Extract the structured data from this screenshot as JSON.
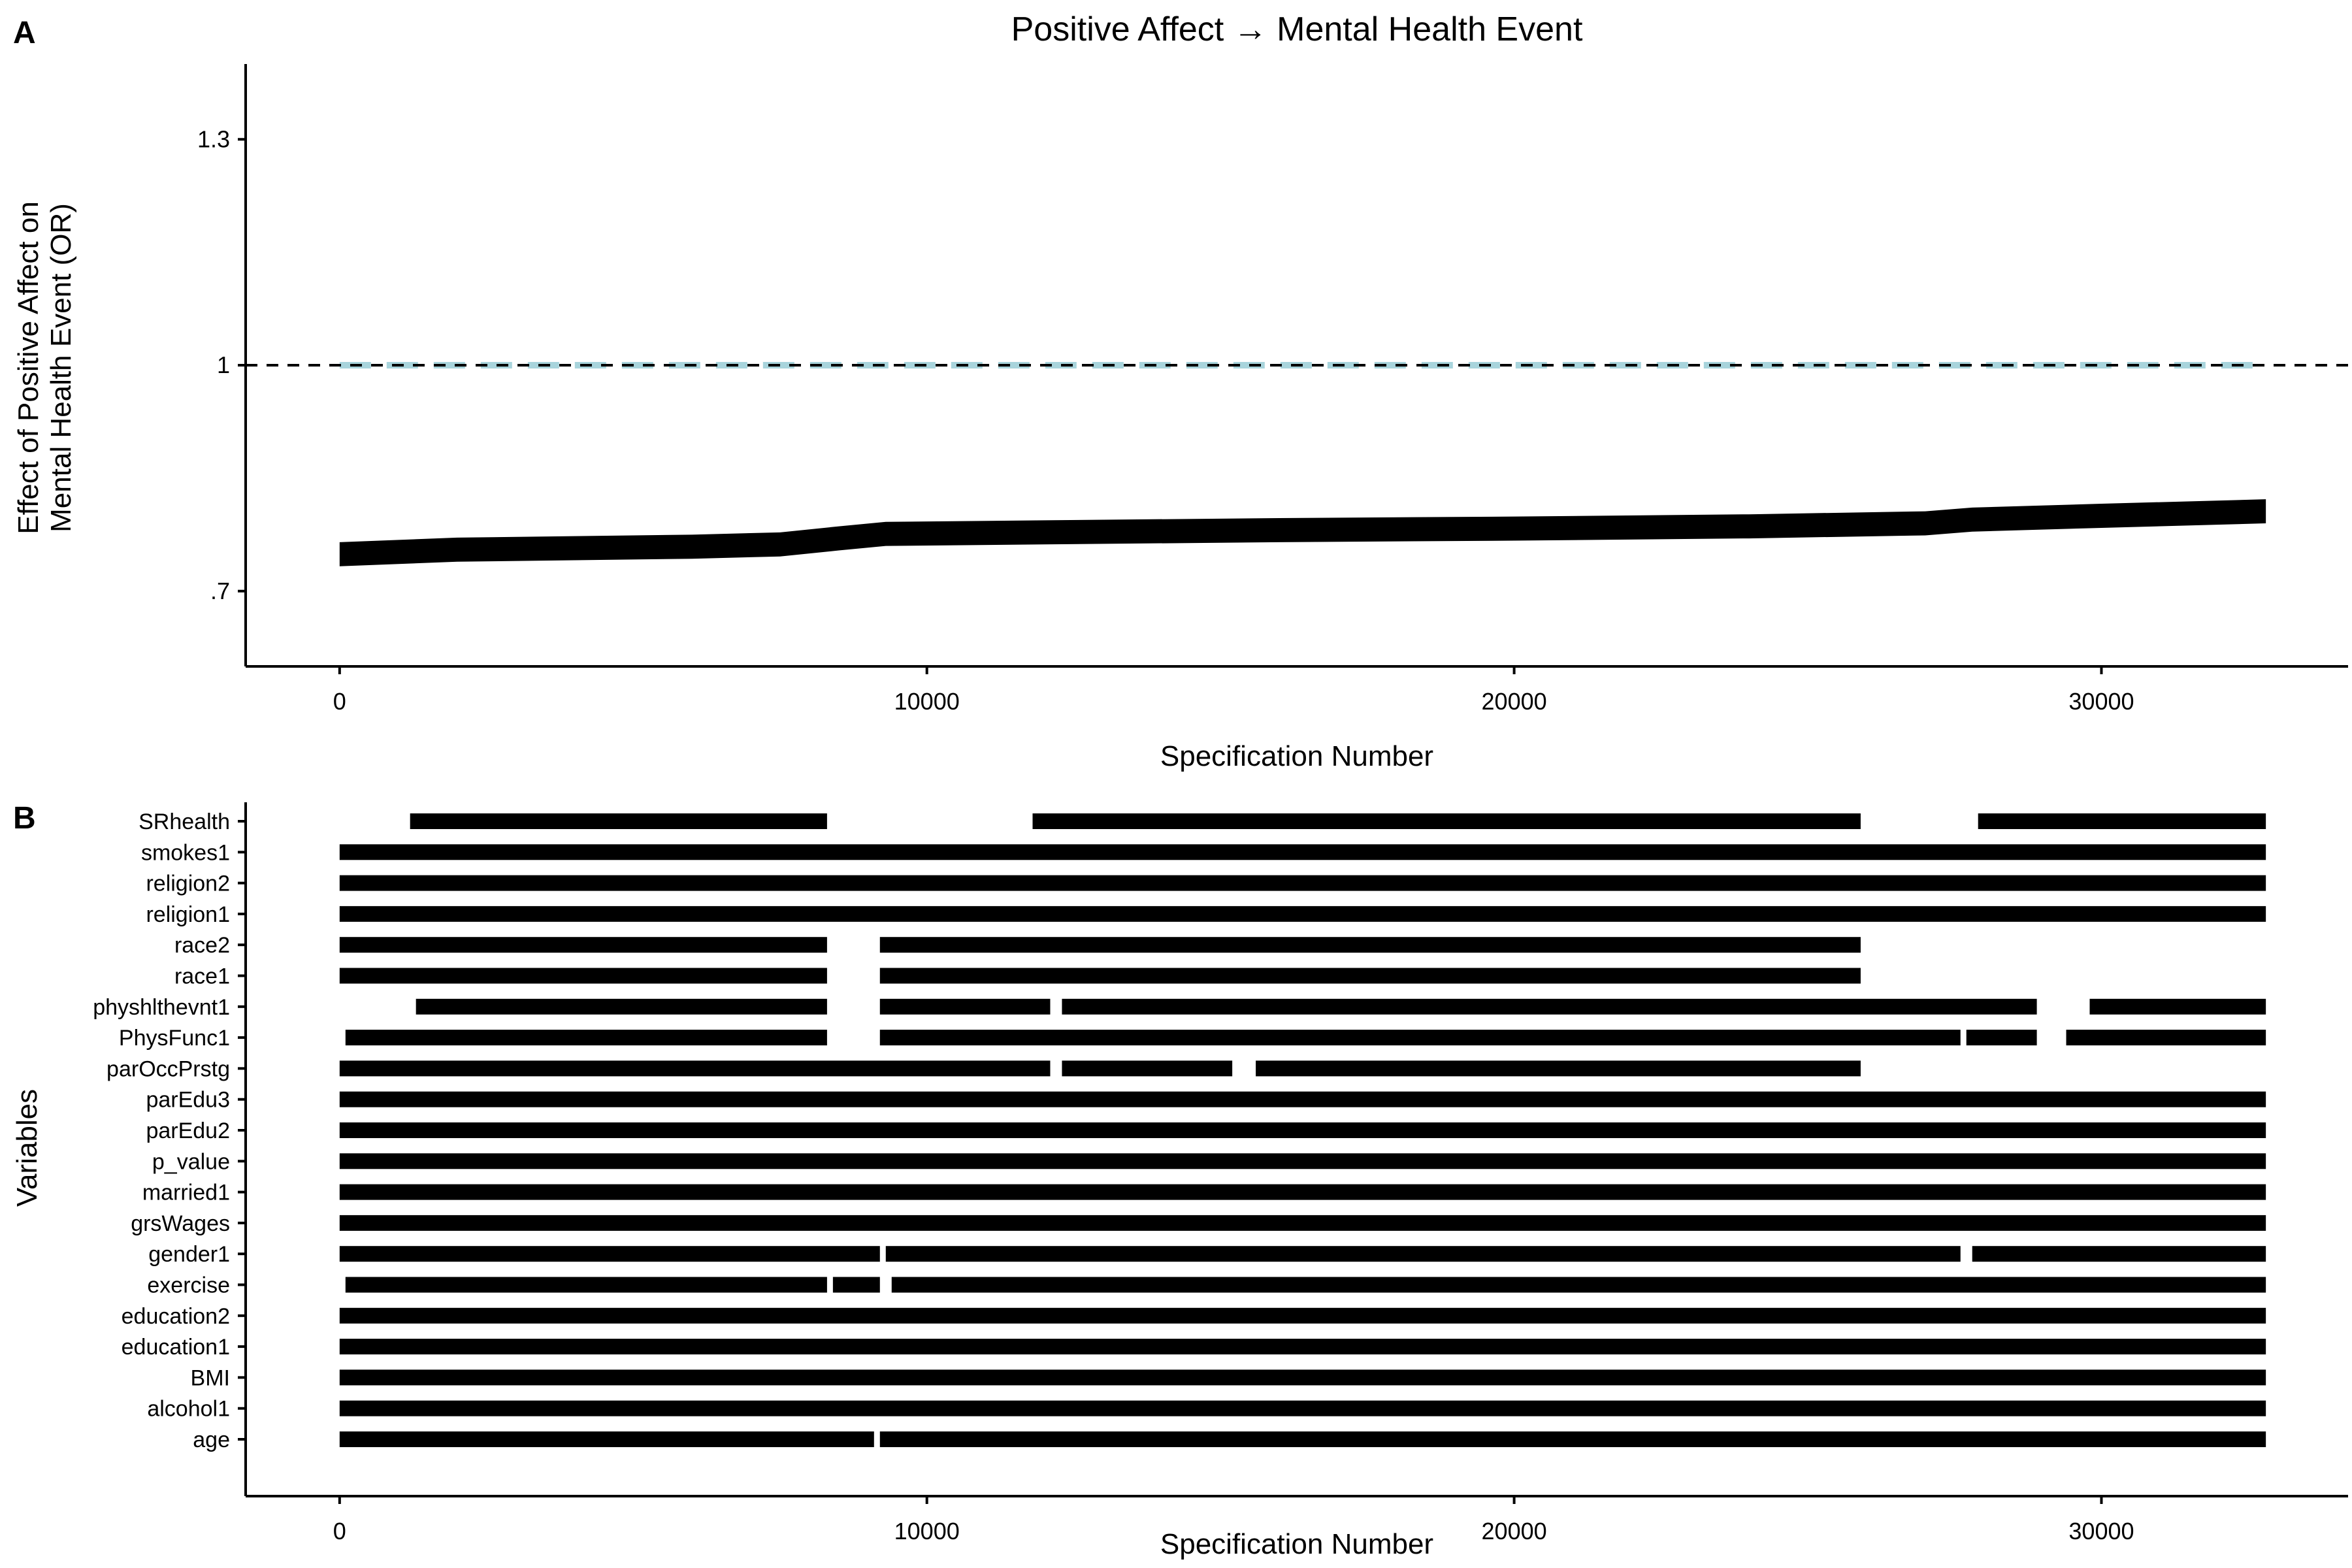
{
  "panels": {
    "a_letter": "A",
    "b_letter": "B"
  },
  "colors": {
    "ink": "#000000",
    "ci_band": "#a8d4dc",
    "background": "#ffffff"
  },
  "chart_data": [
    {
      "type": "line",
      "panel": "A",
      "title": "Positive Affect → Mental Health Event",
      "xlabel": "Specification Number",
      "ylabel_line1": "Effect of Positive Affect on",
      "ylabel_line2": "Mental Health Event (OR)",
      "xlim": [
        -1600,
        34200
      ],
      "ylim": [
        0.6,
        1.4
      ],
      "x_ticks": [
        0,
        10000,
        20000,
        30000
      ],
      "x_tick_labels": [
        "0",
        "10000",
        "20000",
        "30000"
      ],
      "y_ticks": [
        0.7,
        1.0,
        1.3
      ],
      "y_tick_labels": [
        ".7",
        "1",
        "1.3"
      ],
      "reference_line": 1.0,
      "reference_style": "dashed",
      "grid": false,
      "series": [
        {
          "role": "estimate",
          "x": [
            0,
            2000,
            4000,
            6000,
            7500,
            8500,
            9300,
            12000,
            16000,
            20000,
            24000,
            27000,
            27800,
            30000,
            32800
          ],
          "y": [
            0.749,
            0.755,
            0.757,
            0.759,
            0.762,
            0.77,
            0.776,
            0.778,
            0.781,
            0.783,
            0.786,
            0.79,
            0.795,
            0.8,
            0.806
          ],
          "band": 0.016
        },
        {
          "role": "null-distribution",
          "x": [
            0,
            32800
          ],
          "y": [
            1.0,
            1.0
          ],
          "style": "dashed-light-band"
        }
      ]
    },
    {
      "type": "heatmap",
      "panel": "B",
      "xlabel": "Specification Number",
      "ylabel": "Variables",
      "xlim": [
        -1600,
        34200
      ],
      "x_ticks": [
        0,
        10000,
        20000,
        30000
      ],
      "x_tick_labels": [
        "0",
        "10000",
        "20000",
        "30000"
      ],
      "variables": [
        {
          "label": "SRhealth",
          "segments": [
            [
              1200,
              8300
            ],
            [
              11800,
              25900
            ],
            [
              27900,
              32800
            ]
          ]
        },
        {
          "label": "smokes1",
          "segments": [
            [
              0,
              32800
            ]
          ]
        },
        {
          "label": "religion2",
          "segments": [
            [
              0,
              32800
            ]
          ]
        },
        {
          "label": "religion1",
          "segments": [
            [
              0,
              32800
            ]
          ]
        },
        {
          "label": "race2",
          "segments": [
            [
              0,
              8300
            ],
            [
              9200,
              25900
            ]
          ]
        },
        {
          "label": "race1",
          "segments": [
            [
              0,
              8300
            ],
            [
              9200,
              25900
            ]
          ]
        },
        {
          "label": "physhlthevnt1",
          "segments": [
            [
              1300,
              8300
            ],
            [
              9200,
              12100
            ],
            [
              12300,
              28900
            ],
            [
              29800,
              32800
            ]
          ]
        },
        {
          "label": "PhysFunc1",
          "segments": [
            [
              100,
              8300
            ],
            [
              9200,
              27600
            ],
            [
              27700,
              28900
            ],
            [
              29400,
              32800
            ]
          ]
        },
        {
          "label": "parOccPrstg",
          "segments": [
            [
              0,
              12100
            ],
            [
              12300,
              15200
            ],
            [
              15600,
              25900
            ]
          ]
        },
        {
          "label": "parEdu3",
          "segments": [
            [
              0,
              32800
            ]
          ]
        },
        {
          "label": "parEdu2",
          "segments": [
            [
              0,
              32800
            ]
          ]
        },
        {
          "label": "p_value",
          "segments": [
            [
              0,
              32800
            ]
          ]
        },
        {
          "label": "married1",
          "segments": [
            [
              0,
              32800
            ]
          ]
        },
        {
          "label": "grsWages",
          "segments": [
            [
              0,
              32800
            ]
          ]
        },
        {
          "label": "gender1",
          "segments": [
            [
              0,
              9200
            ],
            [
              9300,
              27600
            ],
            [
              27800,
              32800
            ]
          ]
        },
        {
          "label": "exercise",
          "segments": [
            [
              100,
              8300
            ],
            [
              8400,
              9200
            ],
            [
              9400,
              32800
            ]
          ]
        },
        {
          "label": "education2",
          "segments": [
            [
              0,
              32800
            ]
          ]
        },
        {
          "label": "education1",
          "segments": [
            [
              0,
              32800
            ]
          ]
        },
        {
          "label": "BMI",
          "segments": [
            [
              0,
              32800
            ]
          ]
        },
        {
          "label": "alcohol1",
          "segments": [
            [
              0,
              32800
            ]
          ]
        },
        {
          "label": "age",
          "segments": [
            [
              0,
              9100
            ],
            [
              9200,
              32800
            ]
          ]
        }
      ]
    }
  ]
}
